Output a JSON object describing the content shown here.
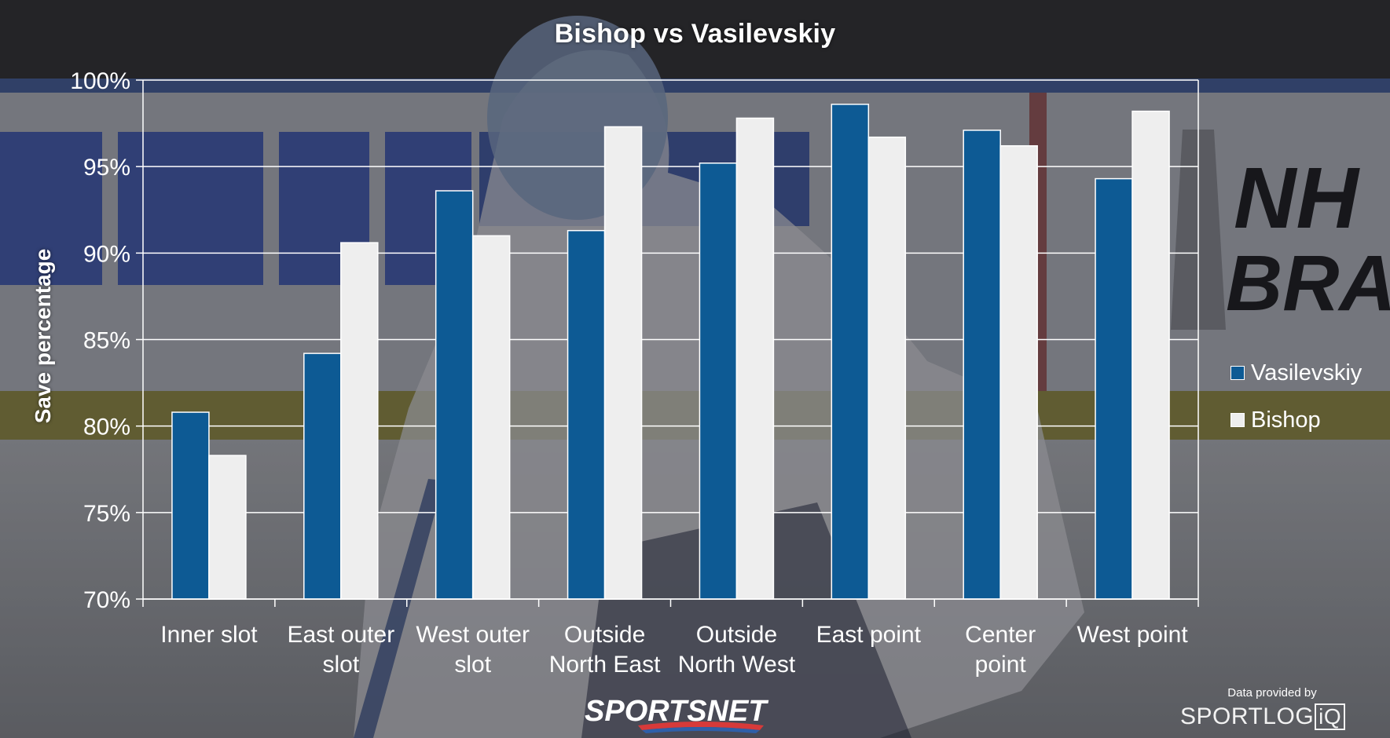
{
  "chart_data": {
    "type": "bar",
    "title": "Bishop vs Vasilevskiy",
    "ylabel": "Save percentage",
    "xlabel": "",
    "ylim": [
      70,
      100
    ],
    "yticks": [
      "70%",
      "75%",
      "80%",
      "85%",
      "90%",
      "95%",
      "100%"
    ],
    "ytick_values": [
      70,
      75,
      80,
      85,
      90,
      95,
      100
    ],
    "grid": true,
    "legend_position": "right",
    "categories": [
      [
        "Inner slot"
      ],
      [
        "East outer",
        "slot"
      ],
      [
        "West outer",
        "slot"
      ],
      [
        "Outside",
        "North East"
      ],
      [
        "Outside",
        "North West"
      ],
      [
        "East point"
      ],
      [
        "Center",
        "point"
      ],
      [
        "West point"
      ]
    ],
    "series": [
      {
        "name": "Vasilevskiy",
        "color": "#0d5a94",
        "values": [
          80.8,
          84.2,
          93.6,
          91.3,
          95.2,
          98.6,
          97.1,
          94.3
        ]
      },
      {
        "name": "Bishop",
        "color": "#eeeeee",
        "values": [
          78.3,
          90.6,
          91.0,
          97.3,
          97.8,
          96.7,
          96.2,
          98.2
        ]
      }
    ]
  },
  "branding": {
    "broadcaster": "SPORTSNET",
    "credit": "Data provided by",
    "provider": "SPORTLOG",
    "provider_suffix": "iQ"
  }
}
